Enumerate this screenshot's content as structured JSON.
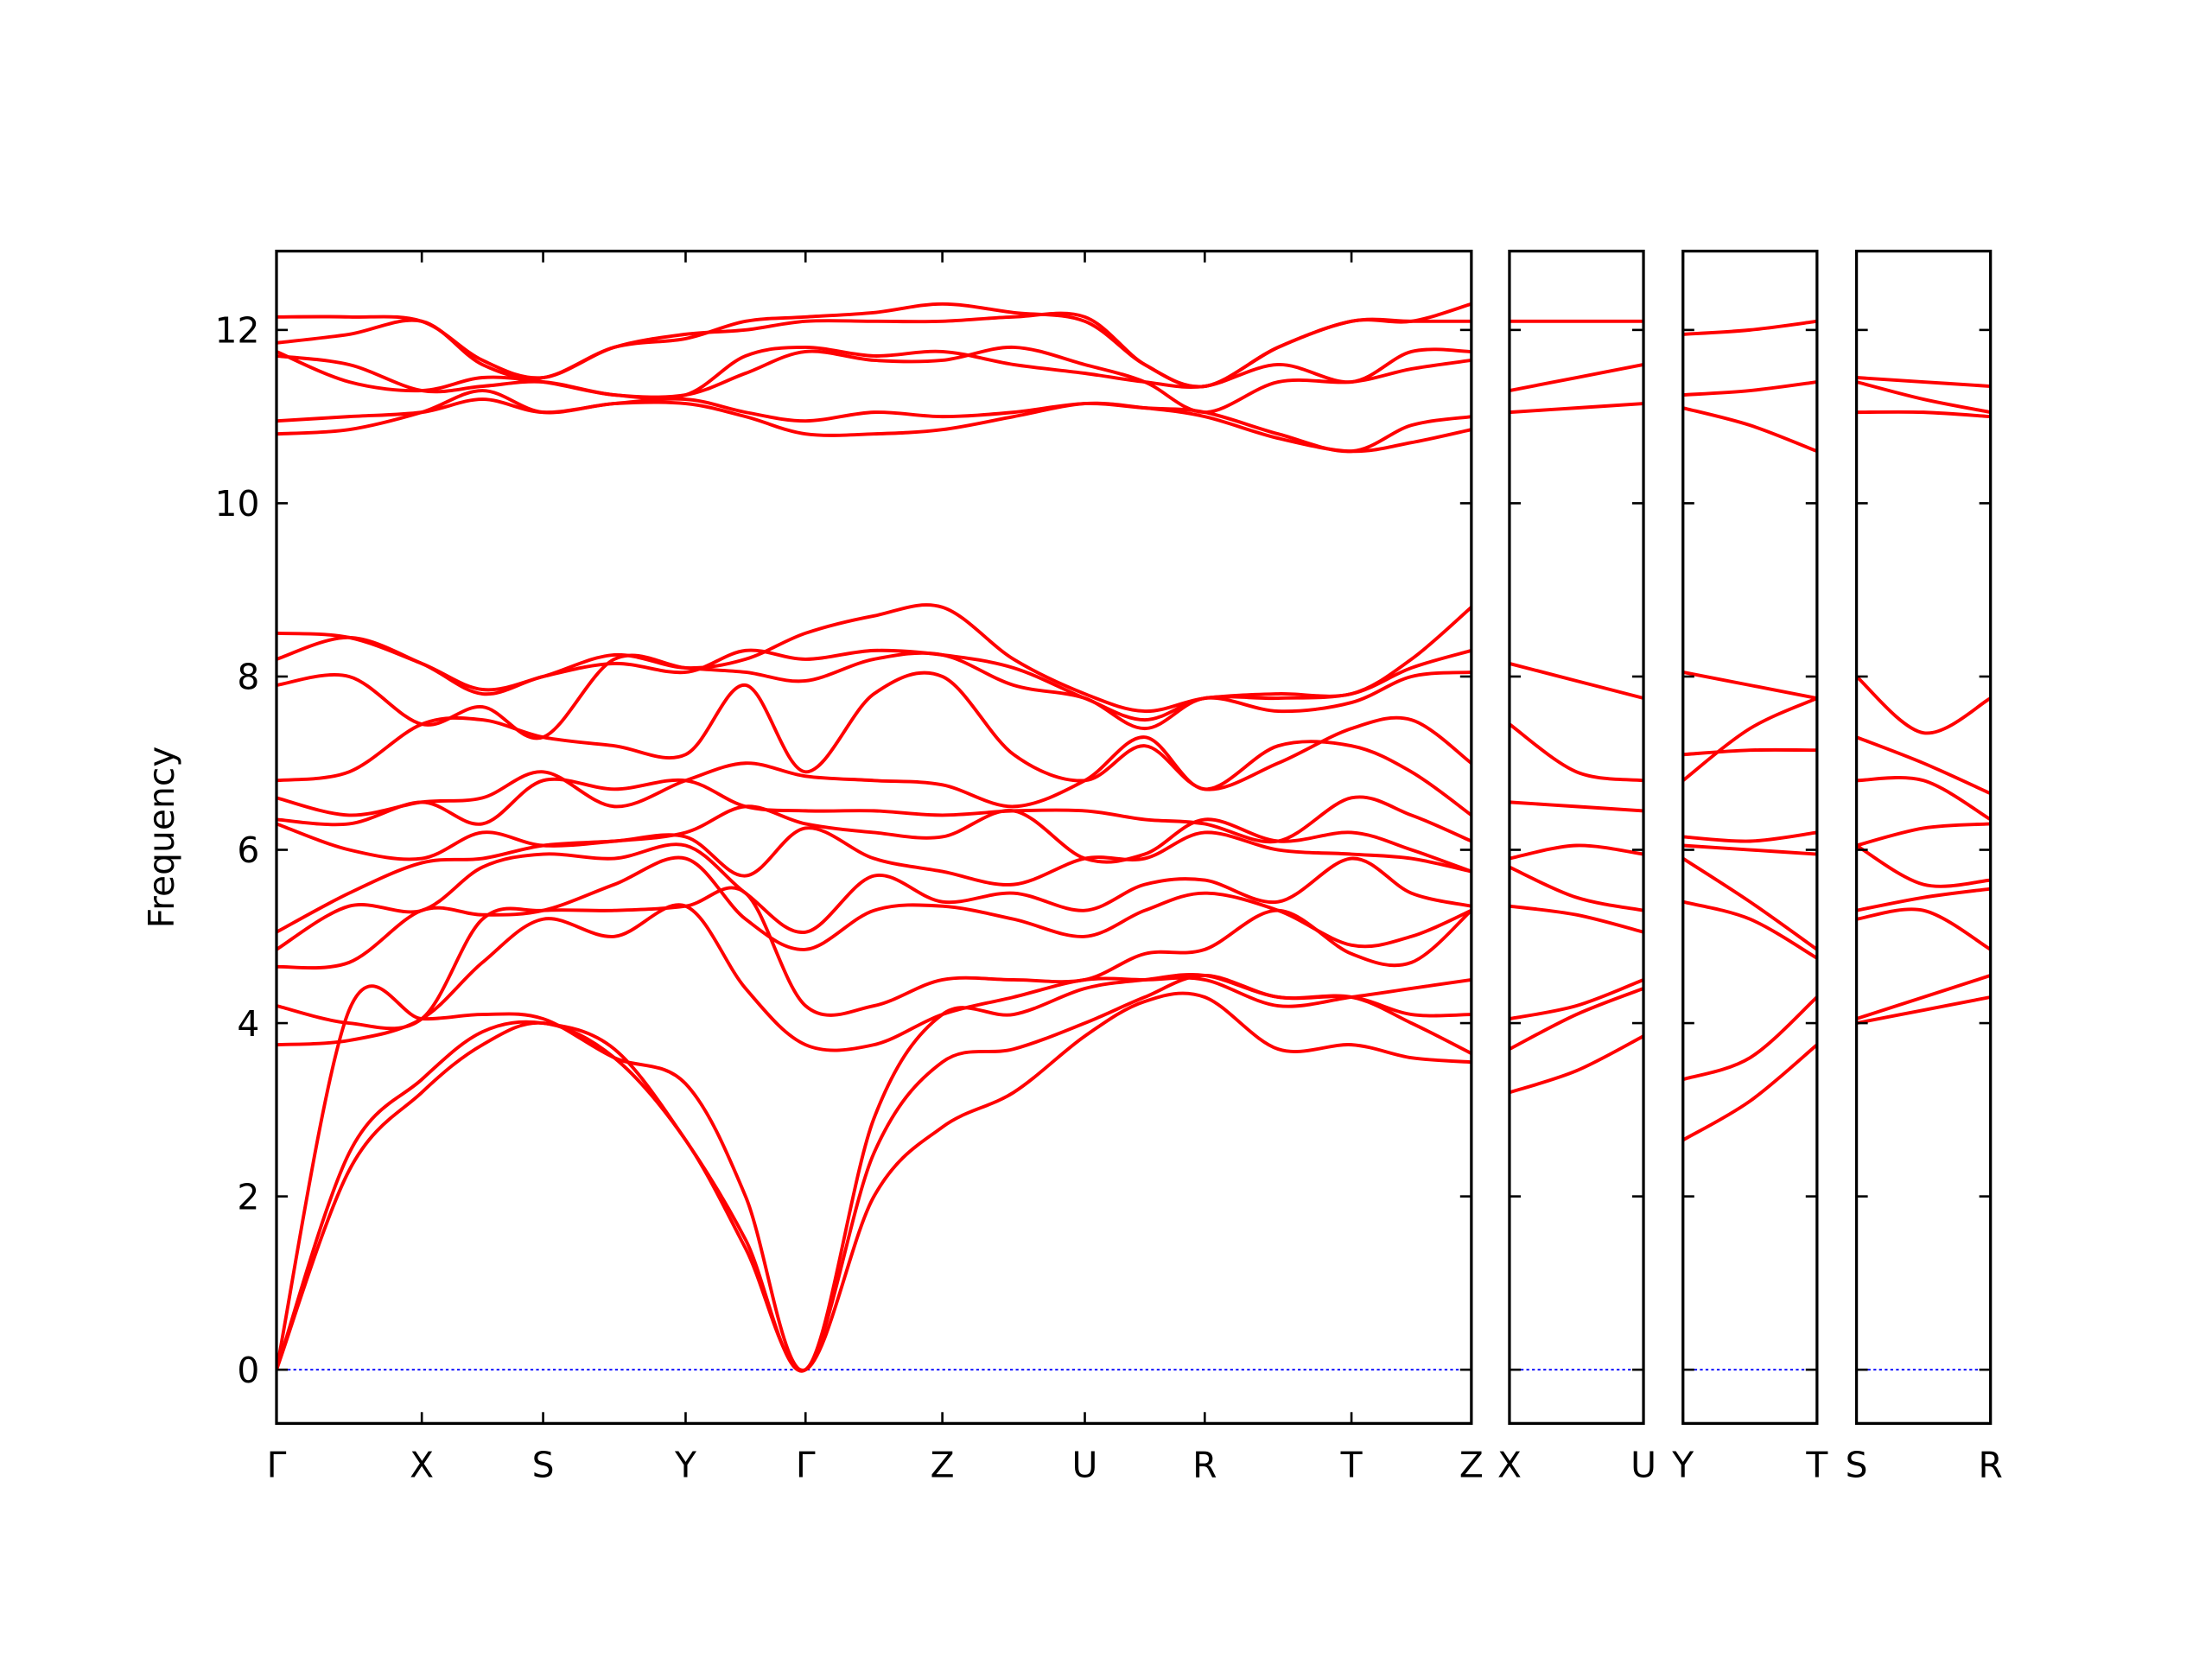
{
  "chart_data": [
    {
      "type": "line",
      "ylabel": "Frequency",
      "line_width": 2.4,
      "zero_line": 0,
      "zero_color": "#0000ff",
      "xlim": [
        0,
        8.47
      ],
      "ylim": [
        -0.62,
        12.91
      ],
      "yticks": [
        0,
        2,
        4,
        6,
        8,
        10,
        12
      ],
      "xticks": [
        {
          "value": 0,
          "label": "Γ"
        },
        {
          "value": 1.03,
          "label": "X"
        },
        {
          "value": 1.89,
          "label": "S"
        },
        {
          "value": 2.9,
          "label": "Y"
        },
        {
          "value": 3.75,
          "label": "Γ"
        },
        {
          "value": 4.72,
          "label": "Z"
        },
        {
          "value": 5.73,
          "label": "U"
        },
        {
          "value": 6.58,
          "label": "R"
        },
        {
          "value": 7.62,
          "label": "T"
        },
        {
          "value": 8.47,
          "label": "Z"
        }
      ],
      "x": [
        0,
        0.515,
        1.03,
        1.46,
        1.89,
        2.395,
        2.9,
        3.325,
        3.75,
        4.235,
        4.72,
        5.225,
        5.73,
        6.155,
        6.58,
        7.1,
        7.62,
        8.045,
        8.47
      ],
      "series": [
        {
          "color": "#ff0000",
          "values": [
            0,
            2.3,
            3.2,
            3.75,
            4.0,
            3.6,
            2.65,
            1.4,
            0,
            2.0,
            2.8,
            3.2,
            3.85,
            4.25,
            4.3,
            3.7,
            3.75,
            3.6,
            3.55
          ]
        },
        {
          "color": "#ff0000",
          "values": [
            0,
            2.5,
            3.35,
            3.9,
            4.0,
            3.7,
            2.65,
            1.5,
            0,
            2.5,
            3.55,
            3.7,
            4.0,
            4.3,
            4.55,
            4.3,
            4.3,
            4.0,
            3.65
          ]
        },
        {
          "color": "#ff0000",
          "values": [
            0,
            4.15,
            4.05,
            4.1,
            4.05,
            3.6,
            3.3,
            2.0,
            0,
            2.9,
            4.1,
            4.1,
            4.4,
            4.5,
            4.55,
            4.3,
            4.3,
            4.1,
            4.1
          ]
        },
        {
          "color": "#ff0000",
          "values": [
            3.75,
            3.8,
            4.05,
            4.7,
            5.2,
            5.0,
            5.35,
            4.4,
            3.75,
            3.75,
            4.1,
            4.3,
            4.5,
            4.5,
            4.5,
            4.2,
            4.3,
            4.4,
            4.5
          ]
        },
        {
          "color": "#ff0000",
          "values": [
            4.2,
            4.0,
            4.05,
            5.2,
            5.3,
            5.3,
            5.35,
            5.5,
            4.2,
            4.2,
            4.5,
            4.5,
            4.5,
            4.8,
            4.85,
            5.3,
            4.8,
            4.7,
            5.3
          ]
        },
        {
          "color": "#ff0000",
          "values": [
            4.65,
            4.7,
            5.3,
            5.25,
            5.3,
            5.6,
            5.9,
            5.2,
            4.85,
            5.3,
            5.35,
            5.2,
            5.0,
            5.3,
            5.5,
            5.3,
            4.9,
            5.0,
            5.3
          ]
        },
        {
          "color": "#ff0000",
          "values": [
            4.85,
            5.35,
            5.3,
            5.8,
            5.95,
            5.9,
            6.05,
            5.5,
            5.05,
            5.7,
            5.4,
            5.5,
            5.3,
            5.6,
            5.65,
            5.4,
            5.9,
            5.5,
            5.35
          ]
        },
        {
          "color": "#ff0000",
          "values": [
            5.05,
            5.5,
            5.85,
            5.9,
            6.05,
            6.1,
            6.15,
            5.7,
            6.25,
            5.9,
            5.75,
            5.6,
            5.9,
            5.9,
            6.2,
            6.0,
            5.95,
            5.9,
            5.75
          ]
        },
        {
          "color": "#ff0000",
          "values": [
            6.3,
            6.0,
            5.9,
            6.2,
            6.05,
            6.1,
            6.2,
            6.5,
            6.3,
            6.2,
            6.15,
            6.45,
            5.9,
            5.95,
            6.35,
            6.1,
            6.2,
            6.0,
            5.75
          ]
        },
        {
          "color": "#ff0000",
          "values": [
            6.35,
            6.3,
            6.55,
            6.3,
            6.8,
            6.7,
            6.8,
            6.5,
            6.45,
            6.45,
            6.4,
            6.45,
            6.45,
            6.35,
            6.3,
            6.1,
            6.6,
            6.4,
            6.1
          ]
        },
        {
          "color": "#ff0000",
          "values": [
            6.6,
            6.4,
            6.55,
            6.6,
            6.9,
            6.5,
            6.8,
            7.0,
            6.85,
            6.8,
            6.75,
            6.5,
            6.8,
            7.3,
            6.7,
            7.2,
            7.2,
            6.9,
            6.4
          ]
        },
        {
          "color": "#ff0000",
          "values": [
            6.8,
            6.9,
            7.45,
            7.5,
            7.3,
            7.2,
            7.1,
            7.9,
            6.9,
            7.8,
            8.0,
            7.1,
            6.8,
            7.2,
            6.7,
            7.0,
            7.4,
            7.5,
            7.0
          ]
        },
        {
          "color": "#ff0000",
          "values": [
            7.9,
            8.0,
            7.45,
            7.65,
            7.3,
            8.2,
            8.1,
            8.05,
            7.95,
            8.2,
            8.25,
            7.9,
            7.75,
            7.4,
            7.75,
            7.6,
            7.7,
            8.0,
            8.05
          ]
        },
        {
          "color": "#ff0000",
          "values": [
            8.2,
            8.45,
            8.15,
            7.8,
            8.0,
            8.15,
            8.05,
            8.3,
            8.2,
            8.3,
            8.25,
            8.1,
            7.75,
            7.5,
            7.75,
            7.75,
            7.8,
            8.1,
            8.3
          ]
        },
        {
          "color": "#ff0000",
          "values": [
            8.5,
            8.45,
            8.15,
            7.85,
            8.0,
            8.25,
            8.1,
            8.2,
            8.5,
            8.7,
            8.8,
            8.2,
            7.8,
            7.6,
            7.75,
            7.8,
            7.8,
            8.2,
            8.8
          ]
        },
        {
          "color": "#ff0000",
          "values": [
            10.8,
            10.85,
            11.05,
            11.3,
            11.05,
            11.15,
            11.15,
            11.0,
            10.8,
            10.8,
            10.85,
            11.0,
            11.15,
            11.1,
            11.0,
            10.75,
            10.6,
            10.7,
            10.85
          ]
        },
        {
          "color": "#ff0000",
          "values": [
            10.95,
            11.0,
            11.05,
            11.2,
            11.05,
            11.15,
            11.2,
            11.05,
            10.95,
            11.05,
            11.0,
            11.05,
            11.15,
            11.1,
            11.05,
            10.8,
            10.6,
            10.9,
            11.0
          ]
        },
        {
          "color": "#ff0000",
          "values": [
            11.7,
            11.6,
            11.3,
            11.35,
            11.4,
            11.25,
            11.25,
            11.5,
            11.75,
            11.65,
            11.65,
            11.8,
            11.6,
            11.4,
            11.05,
            11.4,
            11.4,
            11.55,
            11.65
          ]
        },
        {
          "color": "#ff0000",
          "values": [
            11.75,
            11.4,
            11.3,
            11.45,
            11.4,
            11.25,
            11.25,
            11.7,
            11.8,
            11.7,
            11.75,
            11.6,
            11.5,
            11.4,
            11.35,
            11.6,
            11.4,
            11.75,
            11.75
          ]
        },
        {
          "color": "#ff0000",
          "values": [
            11.85,
            11.95,
            12.1,
            11.6,
            11.45,
            11.8,
            11.9,
            12.1,
            12.15,
            12.2,
            12.3,
            12.2,
            12.1,
            11.6,
            11.35,
            11.8,
            12.1,
            12.1,
            12.1
          ]
        },
        {
          "color": "#ff0000",
          "values": [
            12.15,
            12.15,
            12.1,
            11.65,
            11.45,
            11.8,
            11.95,
            12.0,
            12.1,
            12.1,
            12.1,
            12.15,
            12.15,
            11.6,
            11.35,
            11.8,
            12.1,
            12.1,
            12.3
          ]
        }
      ]
    },
    {
      "type": "line",
      "line_width": 2.4,
      "zero_line": 0,
      "zero_color": "#0000ff",
      "xlim": [
        0,
        0.95
      ],
      "ylim": [
        -0.62,
        12.91
      ],
      "yticks": [
        0,
        2,
        4,
        6,
        8,
        10,
        12
      ],
      "xticks": [
        {
          "value": 0,
          "label": "X"
        },
        {
          "value": 0.95,
          "label": "U"
        }
      ],
      "x": [
        0,
        0.475,
        0.95
      ],
      "series": [
        {
          "color": "#ff0000",
          "values": [
            3.2,
            3.45,
            3.85
          ]
        },
        {
          "color": "#ff0000",
          "values": [
            3.7,
            4.1,
            4.4
          ]
        },
        {
          "color": "#ff0000",
          "values": [
            4.05,
            4.2,
            4.5
          ]
        },
        {
          "color": "#ff0000",
          "values": [
            5.35,
            5.25,
            5.05
          ]
        },
        {
          "color": "#ff0000",
          "values": [
            5.8,
            5.45,
            5.3
          ]
        },
        {
          "color": "#ff0000",
          "values": [
            5.9,
            6.05,
            5.95
          ]
        },
        {
          "color": "#ff0000",
          "values": [
            6.55,
            6.5,
            6.45
          ]
        },
        {
          "color": "#ff0000",
          "values": [
            7.45,
            6.9,
            6.8
          ]
        },
        {
          "color": "#ff0000",
          "values": [
            8.15,
            7.95,
            7.75
          ]
        },
        {
          "color": "#ff0000",
          "values": [
            11.05,
            11.1,
            11.15
          ]
        },
        {
          "color": "#ff0000",
          "values": [
            11.3,
            11.45,
            11.6
          ]
        },
        {
          "color": "#ff0000",
          "values": [
            12.1,
            12.1,
            12.1
          ]
        }
      ]
    },
    {
      "type": "line",
      "line_width": 2.4,
      "zero_line": 0,
      "zero_color": "#0000ff",
      "xlim": [
        0,
        0.95
      ],
      "ylim": [
        -0.62,
        12.91
      ],
      "yticks": [
        0,
        2,
        4,
        6,
        8,
        10,
        12
      ],
      "xticks": [
        {
          "value": 0,
          "label": "Y"
        },
        {
          "value": 0.95,
          "label": "T"
        }
      ],
      "x": [
        0,
        0.475,
        0.95
      ],
      "series": [
        {
          "color": "#ff0000",
          "values": [
            2.65,
            3.1,
            3.75
          ]
        },
        {
          "color": "#ff0000",
          "values": [
            3.35,
            3.6,
            4.3
          ]
        },
        {
          "color": "#ff0000",
          "values": [
            5.4,
            5.2,
            4.75
          ]
        },
        {
          "color": "#ff0000",
          "values": [
            5.9,
            5.4,
            4.85
          ]
        },
        {
          "color": "#ff0000",
          "values": [
            6.05,
            6.0,
            5.95
          ]
        },
        {
          "color": "#ff0000",
          "values": [
            6.15,
            6.1,
            6.2
          ]
        },
        {
          "color": "#ff0000",
          "values": [
            6.8,
            7.4,
            7.75
          ]
        },
        {
          "color": "#ff0000",
          "values": [
            7.1,
            7.15,
            7.15
          ]
        },
        {
          "color": "#ff0000",
          "values": [
            8.05,
            7.9,
            7.75
          ]
        },
        {
          "color": "#ff0000",
          "values": [
            11.1,
            10.9,
            10.6
          ]
        },
        {
          "color": "#ff0000",
          "values": [
            11.25,
            11.3,
            11.4
          ]
        },
        {
          "color": "#ff0000",
          "values": [
            11.95,
            12.0,
            12.1
          ]
        }
      ]
    },
    {
      "type": "line",
      "line_width": 2.4,
      "zero_line": 0,
      "zero_color": "#0000ff",
      "xlim": [
        0,
        0.95
      ],
      "ylim": [
        -0.62,
        12.91
      ],
      "yticks": [
        0,
        2,
        4,
        6,
        8,
        10,
        12
      ],
      "xticks": [
        {
          "value": 0,
          "label": "S"
        },
        {
          "value": 0.95,
          "label": "R"
        }
      ],
      "x": [
        0,
        0.475,
        0.95
      ],
      "series": [
        {
          "color": "#ff0000",
          "values": [
            4.0,
            4.15,
            4.3
          ]
        },
        {
          "color": "#ff0000",
          "values": [
            4.05,
            4.3,
            4.55
          ]
        },
        {
          "color": "#ff0000",
          "values": [
            5.2,
            5.3,
            4.85
          ]
        },
        {
          "color": "#ff0000",
          "values": [
            5.3,
            5.45,
            5.55
          ]
        },
        {
          "color": "#ff0000",
          "values": [
            6.05,
            5.6,
            5.65
          ]
        },
        {
          "color": "#ff0000",
          "values": [
            6.05,
            6.25,
            6.3
          ]
        },
        {
          "color": "#ff0000",
          "values": [
            6.8,
            6.8,
            6.35
          ]
        },
        {
          "color": "#ff0000",
          "values": [
            7.3,
            7.0,
            6.65
          ]
        },
        {
          "color": "#ff0000",
          "values": [
            8.0,
            7.35,
            7.75
          ]
        },
        {
          "color": "#ff0000",
          "values": [
            11.05,
            11.05,
            11.0
          ]
        },
        {
          "color": "#ff0000",
          "values": [
            11.4,
            11.2,
            11.05
          ]
        },
        {
          "color": "#ff0000",
          "values": [
            11.45,
            11.4,
            11.35
          ]
        }
      ]
    }
  ]
}
